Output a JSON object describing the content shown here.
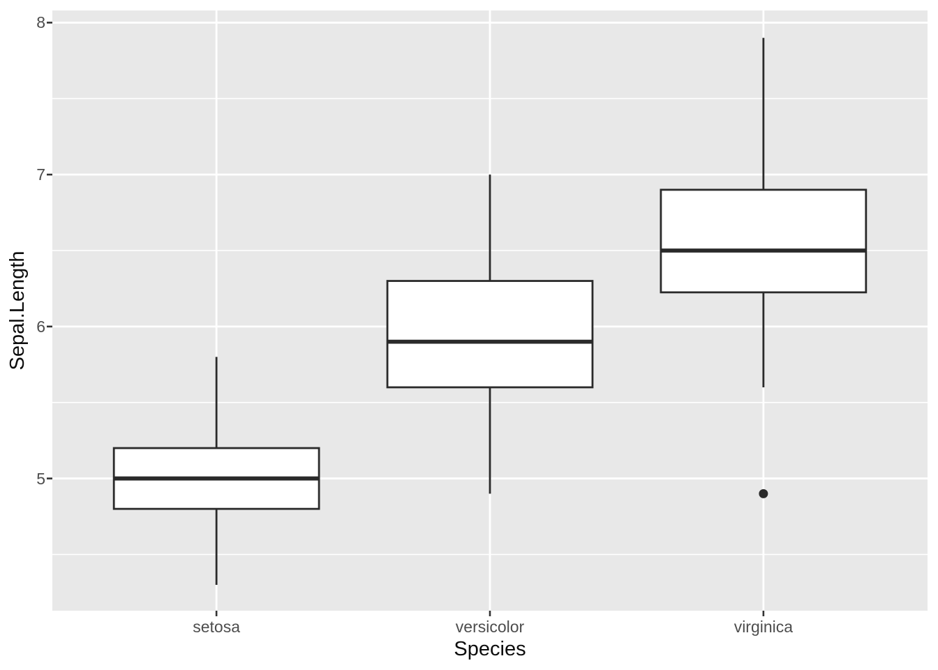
{
  "chart_data": {
    "type": "boxplot",
    "title": "",
    "xlabel": "Species",
    "ylabel": "Sepal.Length",
    "categories": [
      "setosa",
      "versicolor",
      "virginica"
    ],
    "series": [
      {
        "name": "setosa",
        "whisker_low": 4.3,
        "q1": 4.8,
        "median": 5.0,
        "q3": 5.2,
        "whisker_high": 5.8,
        "outliers": []
      },
      {
        "name": "versicolor",
        "whisker_low": 4.9,
        "q1": 5.6,
        "median": 5.9,
        "q3": 6.3,
        "whisker_high": 7.0,
        "outliers": []
      },
      {
        "name": "virginica",
        "whisker_low": 5.6,
        "q1": 6.225,
        "median": 6.5,
        "q3": 6.9,
        "whisker_high": 7.9,
        "outliers": [
          4.9
        ]
      }
    ],
    "yticks": [
      5,
      6,
      7,
      8
    ],
    "yticks_minor": [
      4.5,
      5.5,
      6.5,
      7.5
    ],
    "ylim": [
      4.13,
      8.08
    ],
    "box_width_fraction": 0.75,
    "grid": true,
    "legend": false,
    "style": {
      "panel_bg": "#e8e8e8",
      "grid_color": "#ffffff",
      "box_stroke": "#2a2a2a",
      "box_fill": "#ffffff",
      "tick_mark_color": "#333333",
      "tick_label_color": "#4d4d4d",
      "axis_title_color": "#0d0d0d"
    }
  }
}
